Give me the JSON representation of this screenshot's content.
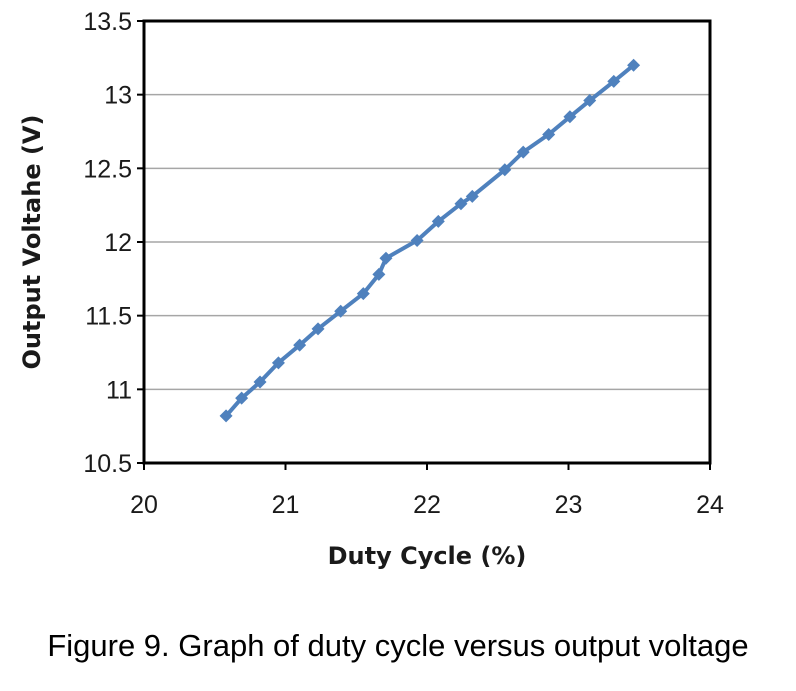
{
  "chart_data": {
    "type": "line",
    "xlabel": "Duty Cycle (%)",
    "ylabel": "Output Voltahe (V)",
    "xlim": [
      20,
      24
    ],
    "ylim": [
      10.5,
      13.5
    ],
    "x_ticks": [
      "20",
      "21",
      "22",
      "23",
      "24"
    ],
    "y_ticks": [
      "10.5",
      "11",
      "11.5",
      "12",
      "12.5",
      "13",
      "13.5"
    ],
    "grid": "horizontal",
    "legend": "none",
    "series": [
      {
        "color": "#4f81bd",
        "marker": "diamond",
        "points": [
          {
            "x": 20.58,
            "y": 10.82
          },
          {
            "x": 20.69,
            "y": 10.94
          },
          {
            "x": 20.82,
            "y": 11.05
          },
          {
            "x": 20.95,
            "y": 11.18
          },
          {
            "x": 21.1,
            "y": 11.3
          },
          {
            "x": 21.23,
            "y": 11.41
          },
          {
            "x": 21.39,
            "y": 11.53
          },
          {
            "x": 21.55,
            "y": 11.65
          },
          {
            "x": 21.66,
            "y": 11.78
          },
          {
            "x": 21.71,
            "y": 11.89
          },
          {
            "x": 21.93,
            "y": 12.01
          },
          {
            "x": 22.08,
            "y": 12.14
          },
          {
            "x": 22.24,
            "y": 12.26
          },
          {
            "x": 22.32,
            "y": 12.31
          },
          {
            "x": 22.55,
            "y": 12.49
          },
          {
            "x": 22.68,
            "y": 12.61
          },
          {
            "x": 22.86,
            "y": 12.73
          },
          {
            "x": 23.01,
            "y": 12.85
          },
          {
            "x": 23.15,
            "y": 12.96
          },
          {
            "x": 23.32,
            "y": 13.09
          },
          {
            "x": 23.46,
            "y": 13.2
          }
        ]
      }
    ]
  },
  "caption": "Figure 9. Graph of duty cycle versus output voltage"
}
